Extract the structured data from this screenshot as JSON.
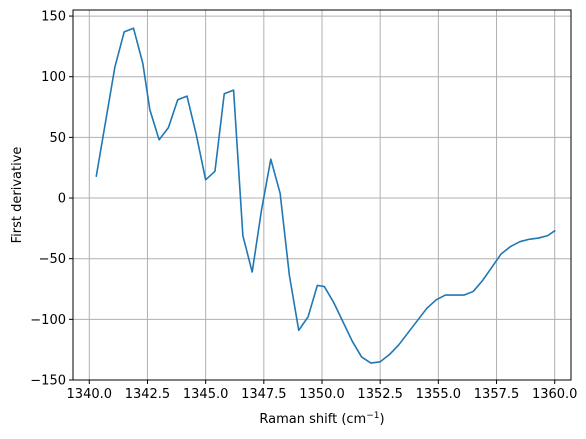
{
  "chart_data": {
    "type": "line",
    "title": "",
    "xlabel": "Raman shift (cm",
    "xlabel_sup": "−1",
    "xlabel_suffix": ")",
    "ylabel": "First derivative",
    "xlim": [
      1339.3,
      1360.7
    ],
    "ylim": [
      -150,
      155
    ],
    "xticks": [
      1340.0,
      1342.5,
      1345.0,
      1347.5,
      1350.0,
      1352.5,
      1355.0,
      1357.5,
      1360.0
    ],
    "xtick_labels": [
      "1340.0",
      "1342.5",
      "1345.0",
      "1347.5",
      "1350.0",
      "1352.5",
      "1355.0",
      "1357.5",
      "1360.0"
    ],
    "yticks": [
      -150,
      -100,
      -50,
      0,
      50,
      100,
      150
    ],
    "ytick_labels": [
      "−150",
      "−100",
      "−50",
      "0",
      "50",
      "100",
      "150"
    ],
    "grid": true,
    "line_color": "#1f77b4",
    "series": [
      {
        "x": [
          1340.3,
          1340.7,
          1341.1,
          1341.5,
          1341.9,
          1342.3,
          1342.6,
          1343.0,
          1343.4,
          1343.8,
          1344.2,
          1344.6,
          1345.0,
          1345.4,
          1345.8,
          1346.2,
          1346.6,
          1347.0,
          1347.4,
          1347.8,
          1348.2,
          1348.6,
          1349.0,
          1349.4,
          1349.8,
          1350.1,
          1350.5,
          1350.9,
          1351.3,
          1351.7,
          1352.1,
          1352.5,
          1352.9,
          1353.3,
          1353.7,
          1354.1,
          1354.5,
          1354.9,
          1355.3,
          1355.7,
          1356.1,
          1356.5,
          1356.9,
          1357.3,
          1357.7,
          1358.1,
          1358.5,
          1358.9,
          1359.3,
          1359.7,
          1360.0
        ],
        "y": [
          18,
          63,
          108,
          137,
          140,
          111,
          73,
          48,
          58,
          81,
          84,
          52,
          15,
          22,
          86,
          89,
          -31,
          -61,
          -10,
          32,
          4,
          -64,
          -109,
          -98,
          -72,
          -73,
          -86,
          -102,
          -118,
          -131,
          -136,
          -135,
          -129,
          -121,
          -111,
          -101,
          -91,
          -84,
          -80,
          -80,
          -80,
          -77,
          -68,
          -57,
          -46,
          -40,
          -36,
          -34,
          -33,
          -31,
          -27
        ]
      }
    ]
  }
}
